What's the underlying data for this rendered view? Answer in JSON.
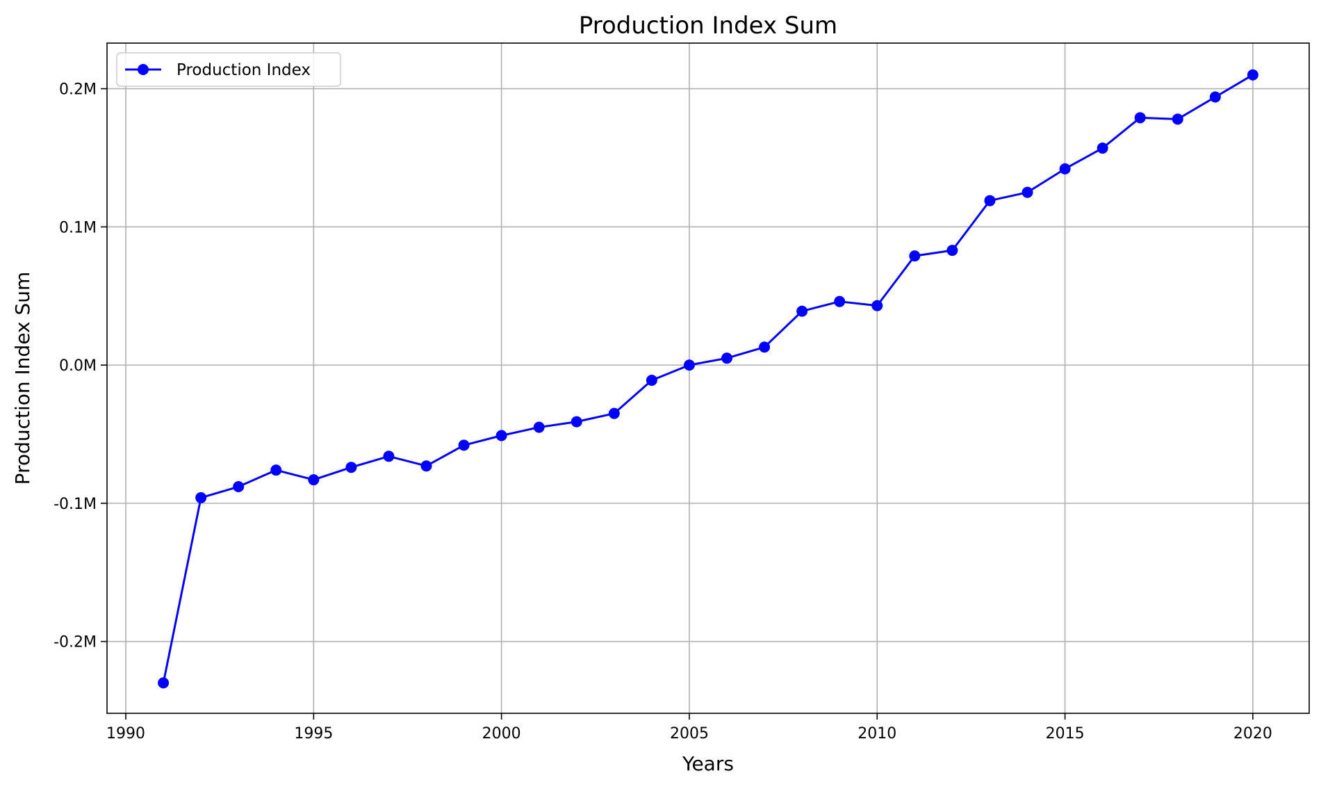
{
  "chart_data": {
    "type": "line",
    "title": "Production Index Sum",
    "xlabel": "Years",
    "ylabel": "Production Index Sum",
    "xlim": [
      1989.5,
      2021.5
    ],
    "ylim": [
      -252000,
      233000
    ],
    "x_ticks": [
      1990,
      1995,
      2000,
      2005,
      2010,
      2015,
      2020
    ],
    "x_tick_labels": [
      "1990",
      "1995",
      "2000",
      "2005",
      "2010",
      "2015",
      "2020"
    ],
    "y_ticks": [
      -200000,
      -100000,
      0,
      100000,
      200000
    ],
    "y_tick_labels": [
      "-0.2M",
      "-0.1M",
      "0.0M",
      "0.1M",
      "0.2M"
    ],
    "grid": true,
    "legend_position": "upper-left",
    "series": [
      {
        "name": "Production Index",
        "color": "#0000ff",
        "marker": "circle",
        "x": [
          1991,
          1992,
          1993,
          1994,
          1995,
          1996,
          1997,
          1998,
          1999,
          2000,
          2001,
          2002,
          2003,
          2004,
          2005,
          2006,
          2007,
          2008,
          2009,
          2010,
          2011,
          2012,
          2013,
          2014,
          2015,
          2016,
          2017,
          2018,
          2019,
          2020
        ],
        "y": [
          -230000,
          -96000,
          -88000,
          -76000,
          -83000,
          -74000,
          -66000,
          -73000,
          -58000,
          -51000,
          -45000,
          -41000,
          -35000,
          -11000,
          0,
          5000,
          13000,
          39000,
          46000,
          43000,
          79000,
          83000,
          119000,
          125000,
          142000,
          157000,
          179000,
          178000,
          194000,
          210000
        ]
      }
    ]
  }
}
